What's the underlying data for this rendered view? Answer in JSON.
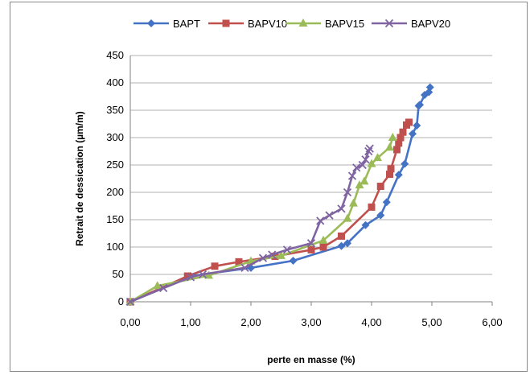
{
  "chart_data": {
    "type": "line",
    "xlabel": "perte en masse (%)",
    "ylabel": "Retrait de dessication (µm/m)",
    "xlim": [
      0,
      6
    ],
    "ylim": [
      0,
      450
    ],
    "xticks": [
      "0,00",
      "1,00",
      "2,00",
      "3,00",
      "4,00",
      "5,00",
      "6,00"
    ],
    "yticks": [
      "0",
      "50",
      "100",
      "150",
      "200",
      "250",
      "300",
      "350",
      "400",
      "450"
    ],
    "legend": "top",
    "grid": "horizontal",
    "series": [
      {
        "name": "BAPT",
        "color": "#4472C4",
        "marker": "diamond",
        "points": [
          [
            0,
            0
          ],
          [
            1.0,
            47
          ],
          [
            2.0,
            62
          ],
          [
            2.7,
            75
          ],
          [
            3.5,
            102
          ],
          [
            3.6,
            107
          ],
          [
            3.9,
            140
          ],
          [
            4.15,
            158
          ],
          [
            4.25,
            182
          ],
          [
            4.45,
            232
          ],
          [
            4.55,
            252
          ],
          [
            4.68,
            307
          ],
          [
            4.75,
            322
          ],
          [
            4.78,
            358
          ],
          [
            4.8,
            360
          ],
          [
            4.88,
            378
          ],
          [
            4.95,
            383
          ],
          [
            4.97,
            392
          ]
        ]
      },
      {
        "name": "BAPV10",
        "color": "#C0504D",
        "marker": "square",
        "points": [
          [
            0,
            0
          ],
          [
            0.95,
            47
          ],
          [
            1.4,
            65
          ],
          [
            1.8,
            73
          ],
          [
            2.4,
            83
          ],
          [
            3.0,
            95
          ],
          [
            3.2,
            100
          ],
          [
            3.5,
            120
          ],
          [
            4.0,
            173
          ],
          [
            4.15,
            211
          ],
          [
            4.3,
            233
          ],
          [
            4.32,
            243
          ],
          [
            4.42,
            278
          ],
          [
            4.45,
            290
          ],
          [
            4.48,
            300
          ],
          [
            4.52,
            310
          ],
          [
            4.58,
            323
          ],
          [
            4.62,
            328
          ]
        ]
      },
      {
        "name": "BAPV15",
        "color": "#9BBB59",
        "marker": "triangle",
        "points": [
          [
            0,
            0
          ],
          [
            0.45,
            29
          ],
          [
            1.3,
            48
          ],
          [
            2.0,
            74
          ],
          [
            2.5,
            84
          ],
          [
            3.2,
            112
          ],
          [
            3.6,
            152
          ],
          [
            3.7,
            180
          ],
          [
            3.8,
            213
          ],
          [
            3.88,
            220
          ],
          [
            4.0,
            252
          ],
          [
            4.1,
            263
          ],
          [
            4.3,
            282
          ],
          [
            4.35,
            300
          ]
        ]
      },
      {
        "name": "BAPV20",
        "color": "#8064A2",
        "marker": "x",
        "points": [
          [
            0,
            0
          ],
          [
            0.55,
            25
          ],
          [
            1.0,
            45
          ],
          [
            1.2,
            50
          ],
          [
            1.9,
            62
          ],
          [
            2.2,
            80
          ],
          [
            2.35,
            86
          ],
          [
            2.6,
            95
          ],
          [
            3.0,
            107
          ],
          [
            3.15,
            148
          ],
          [
            3.3,
            158
          ],
          [
            3.5,
            170
          ],
          [
            3.6,
            200
          ],
          [
            3.68,
            230
          ],
          [
            3.75,
            245
          ],
          [
            3.85,
            250
          ],
          [
            3.9,
            260
          ],
          [
            3.95,
            275
          ],
          [
            3.97,
            280
          ]
        ]
      }
    ]
  }
}
